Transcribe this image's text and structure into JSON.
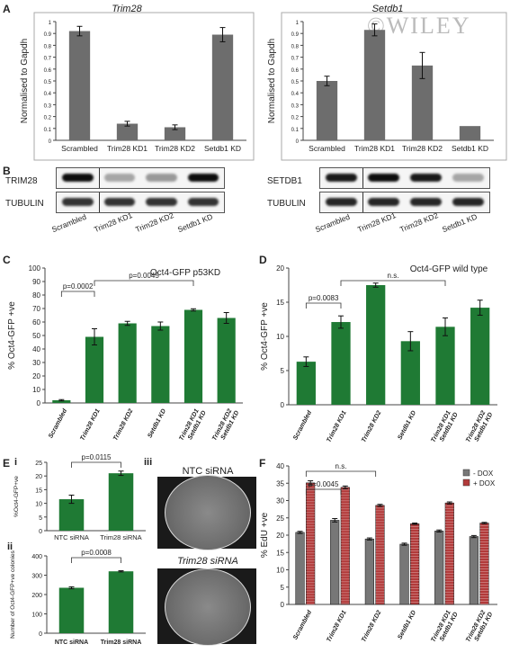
{
  "colors": {
    "gray_bar": "#6d6d6d",
    "green_bar": "#1f7a34",
    "red_bar": "#b23a3a",
    "gray_legend": "#777777"
  },
  "watermark": "©WILEY",
  "panel_labels": {
    "A": "A",
    "B": "B",
    "C": "C",
    "D": "D",
    "E": "E",
    "Ei": "i",
    "Eii": "ii",
    "Eiii": "iii",
    "F": "F"
  },
  "chart_data": [
    {
      "id": "A1",
      "type": "bar",
      "title": "Trim28",
      "ylabel": "Normalised to Gapdh",
      "ylim": [
        0,
        1
      ],
      "yticks": [
        "0",
        "0.1",
        "0.2",
        "0.3",
        "0.4",
        "0.5",
        "0.6",
        "0.7",
        "0.8",
        "0.9",
        "1"
      ],
      "categories": [
        "Scrambled",
        "Trim28 KD1",
        "Trim28 KD2",
        "Setdb1 KD"
      ],
      "values": [
        0.92,
        0.14,
        0.11,
        0.89
      ],
      "errors": [
        0.04,
        0.02,
        0.02,
        0.06
      ]
    },
    {
      "id": "A2",
      "type": "bar",
      "title": "Setdb1",
      "ylabel": "Normalised to Gapdh",
      "ylim": [
        0,
        1
      ],
      "yticks": [
        "0",
        "0.1",
        "0.2",
        "0.3",
        "0.4",
        "0.5",
        "0.6",
        "0.7",
        "0.8",
        "0.9",
        "1"
      ],
      "categories": [
        "Scrambled",
        "Trim28 KD1",
        "Trim28 KD2",
        "Setdb1 KD"
      ],
      "values": [
        0.5,
        0.93,
        0.63,
        0.12
      ],
      "errors": [
        0.04,
        0.05,
        0.11,
        0.0
      ]
    },
    {
      "id": "C",
      "type": "bar",
      "title": "Oct4-GFP p53KD",
      "ylabel": "% Oct4-GFP +ve",
      "ylim": [
        0,
        100
      ],
      "yticks": [
        "0",
        "10",
        "20",
        "30",
        "40",
        "50",
        "60",
        "70",
        "80",
        "90",
        "100"
      ],
      "categories": [
        "Scrambled",
        "Trim28 KD1",
        "Trim28 KD2",
        "Setdb1 KD",
        "Trim28 KD1 Setdb1 KD",
        "Trim28 KD2 Setdb1 KD"
      ],
      "values": [
        2,
        49,
        59,
        57,
        69,
        63
      ],
      "errors": [
        0.5,
        6,
        1.5,
        3,
        0.8,
        4
      ],
      "annotations": [
        {
          "text": "p=0.0002",
          "from": 0,
          "to": 1
        },
        {
          "text": "p=0.0045",
          "from": 1,
          "to": 4
        }
      ]
    },
    {
      "id": "D",
      "type": "bar",
      "title": "Oct4-GFP wild type",
      "ylabel": "% Oct4-GFP +ve",
      "ylim": [
        0,
        20
      ],
      "yticks": [
        "0",
        "5",
        "10",
        "15",
        "20"
      ],
      "categories": [
        "Scrambled",
        "Trim28 KD1",
        "Trim28 KD2",
        "Setdb1 KD",
        "Trim28 KD1 Setdb1 KD",
        "Trim28 KD2 Setdb1 KD"
      ],
      "values": [
        6.3,
        12.1,
        17.5,
        9.3,
        11.4,
        14.2
      ],
      "errors": [
        0.7,
        0.9,
        0.3,
        1.4,
        1.3,
        1.1
      ],
      "annotations": [
        {
          "text": "p=0.0083",
          "from": 0,
          "to": 1
        },
        {
          "text": "n.s.",
          "from": 1,
          "to": 4
        }
      ]
    },
    {
      "id": "Ei",
      "type": "bar",
      "ylabel": "%Oct4-GFP+ve",
      "ylim": [
        0,
        25
      ],
      "yticks": [
        "0",
        "5",
        "10",
        "15",
        "20",
        "25"
      ],
      "categories": [
        "NTC siRNA",
        "Trim28 siRNA"
      ],
      "values": [
        11.5,
        21
      ],
      "errors": [
        1.5,
        0.8
      ],
      "annotations": [
        {
          "text": "p=0.0115",
          "from": 0,
          "to": 1
        }
      ]
    },
    {
      "id": "Eii",
      "type": "bar",
      "ylabel": "Number of Oct4-GFP+ve colonies",
      "ylim": [
        0,
        400
      ],
      "yticks": [
        "0",
        "100",
        "200",
        "300",
        "400"
      ],
      "categories": [
        "NTC siRNA",
        "Trim28 siRNA"
      ],
      "values": [
        235,
        320
      ],
      "errors": [
        5,
        3
      ],
      "annotations": [
        {
          "text": "p=0.0008",
          "from": 0,
          "to": 1
        }
      ]
    },
    {
      "id": "F",
      "type": "bar",
      "ylabel": "% EdU +ve",
      "ylim": [
        0,
        40
      ],
      "yticks": [
        "0",
        "5",
        "10",
        "15",
        "20",
        "25",
        "30",
        "35",
        "40"
      ],
      "categories": [
        "Scrambled",
        "Trim28 KD1",
        "Trim28 KD2",
        "Setdb1 KD",
        "Trim28 KD1 Setdb1 KD",
        "Trim28 KD2 Setdb1 KD"
      ],
      "series": [
        {
          "name": "- DOX",
          "values": [
            20.8,
            24.3,
            18.9,
            17.4,
            21.2,
            19.6
          ],
          "errors": [
            0.3,
            0.5,
            0.3,
            0.3,
            0.3,
            0.3
          ]
        },
        {
          "name": "+ DOX",
          "values": [
            35.1,
            33.8,
            28.6,
            23.3,
            29.3,
            23.5
          ],
          "errors": [
            0.6,
            0.4,
            0.3,
            0.2,
            0.3,
            0.2
          ]
        }
      ],
      "legend": "top-right",
      "annotations": [
        {
          "text": "n.s.",
          "from": 0,
          "to": 2
        },
        {
          "text": "p=0.0045",
          "from": 0,
          "to": 1
        }
      ]
    }
  ],
  "blots": {
    "left": {
      "row1": "TRIM28",
      "row2": "TUBULIN",
      "lanes": [
        "Scrambled",
        "Trim28 KD1",
        "Trim28 KD2",
        "Setdb1 KD"
      ],
      "intensity1": [
        0.95,
        0.35,
        0.4,
        0.95
      ],
      "intensity2": [
        0.8,
        0.8,
        0.8,
        0.8
      ]
    },
    "right": {
      "row1": "SETDB1",
      "row2": "TUBULIN",
      "lanes": [
        "Scrambled",
        "Trim28 KD1",
        "Trim28 KD2",
        "Setdb1 KD"
      ],
      "intensity1": [
        0.9,
        0.95,
        0.9,
        0.35
      ],
      "intensity2": [
        0.85,
        0.85,
        0.85,
        0.85
      ]
    }
  },
  "dishes": {
    "top": "NTC siRNA",
    "bottom": "Trim28 siRNA"
  }
}
